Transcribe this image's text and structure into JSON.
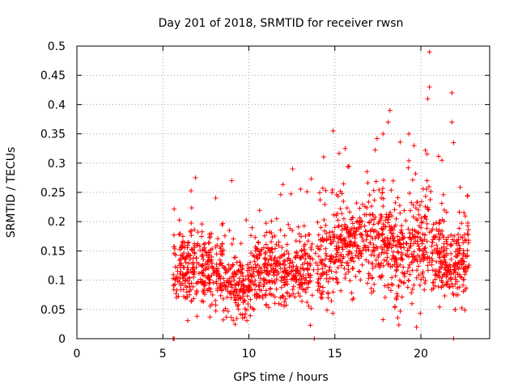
{
  "chart_data": {
    "type": "scatter",
    "title": "Day 201 of 2018, SRMTID for receiver rwsn",
    "xlabel": "GPS time / hours",
    "ylabel": "SRMTID / TECUs",
    "xlim": [
      0,
      24
    ],
    "ylim": [
      0,
      0.5
    ],
    "x_ticks": [
      0,
      5,
      10,
      15,
      20
    ],
    "x_tick_labels": [
      "0",
      "5",
      "10",
      "15",
      "20"
    ],
    "y_ticks": [
      0,
      0.05,
      0.1,
      0.15,
      0.2,
      0.25,
      0.3,
      0.35,
      0.4,
      0.45,
      0.5
    ],
    "y_tick_labels": [
      "0",
      "0.05",
      "0.1",
      "0.15",
      "0.2",
      "0.25",
      "0.3",
      "0.35",
      "0.4",
      "0.45",
      "0.5"
    ],
    "grid": true,
    "marker": "+",
    "series": [
      {
        "name": "SRMTID",
        "color": "#ff0000",
        "x_range": [
          5.6,
          22.8
        ],
        "point_count": 1800,
        "seed": 201,
        "envelope": [
          {
            "x": 5.6,
            "mean": 0.12,
            "spread": 0.05
          },
          {
            "x": 7.0,
            "mean": 0.12,
            "spread": 0.05
          },
          {
            "x": 8.5,
            "mean": 0.105,
            "spread": 0.05
          },
          {
            "x": 9.7,
            "mean": 0.08,
            "spread": 0.04
          },
          {
            "x": 10.5,
            "mean": 0.12,
            "spread": 0.055
          },
          {
            "x": 12.5,
            "mean": 0.11,
            "spread": 0.05
          },
          {
            "x": 14.0,
            "mean": 0.13,
            "spread": 0.06
          },
          {
            "x": 15.5,
            "mean": 0.16,
            "spread": 0.07
          },
          {
            "x": 17.5,
            "mean": 0.17,
            "spread": 0.075
          },
          {
            "x": 19.0,
            "mean": 0.15,
            "spread": 0.07
          },
          {
            "x": 20.5,
            "mean": 0.16,
            "spread": 0.075
          },
          {
            "x": 21.5,
            "mean": 0.12,
            "spread": 0.05
          },
          {
            "x": 22.8,
            "mean": 0.14,
            "spread": 0.06
          }
        ],
        "notable_points": [
          {
            "x": 20.5,
            "y": 0.49
          },
          {
            "x": 20.5,
            "y": 0.43
          },
          {
            "x": 20.4,
            "y": 0.41
          },
          {
            "x": 21.8,
            "y": 0.42
          },
          {
            "x": 21.8,
            "y": 0.37
          },
          {
            "x": 18.2,
            "y": 0.39
          },
          {
            "x": 18.1,
            "y": 0.37
          },
          {
            "x": 14.9,
            "y": 0.355
          },
          {
            "x": 19.3,
            "y": 0.35
          },
          {
            "x": 17.8,
            "y": 0.35
          },
          {
            "x": 21.9,
            "y": 0.335
          },
          {
            "x": 15.6,
            "y": 0.325
          },
          {
            "x": 19.6,
            "y": 0.33
          },
          {
            "x": 9.0,
            "y": 0.27
          },
          {
            "x": 6.9,
            "y": 0.275
          },
          {
            "x": 5.6,
            "y": 0.0
          },
          {
            "x": 5.65,
            "y": 0.0
          },
          {
            "x": 13.8,
            "y": 0.0
          },
          {
            "x": 21.9,
            "y": 0.0
          }
        ]
      }
    ]
  }
}
